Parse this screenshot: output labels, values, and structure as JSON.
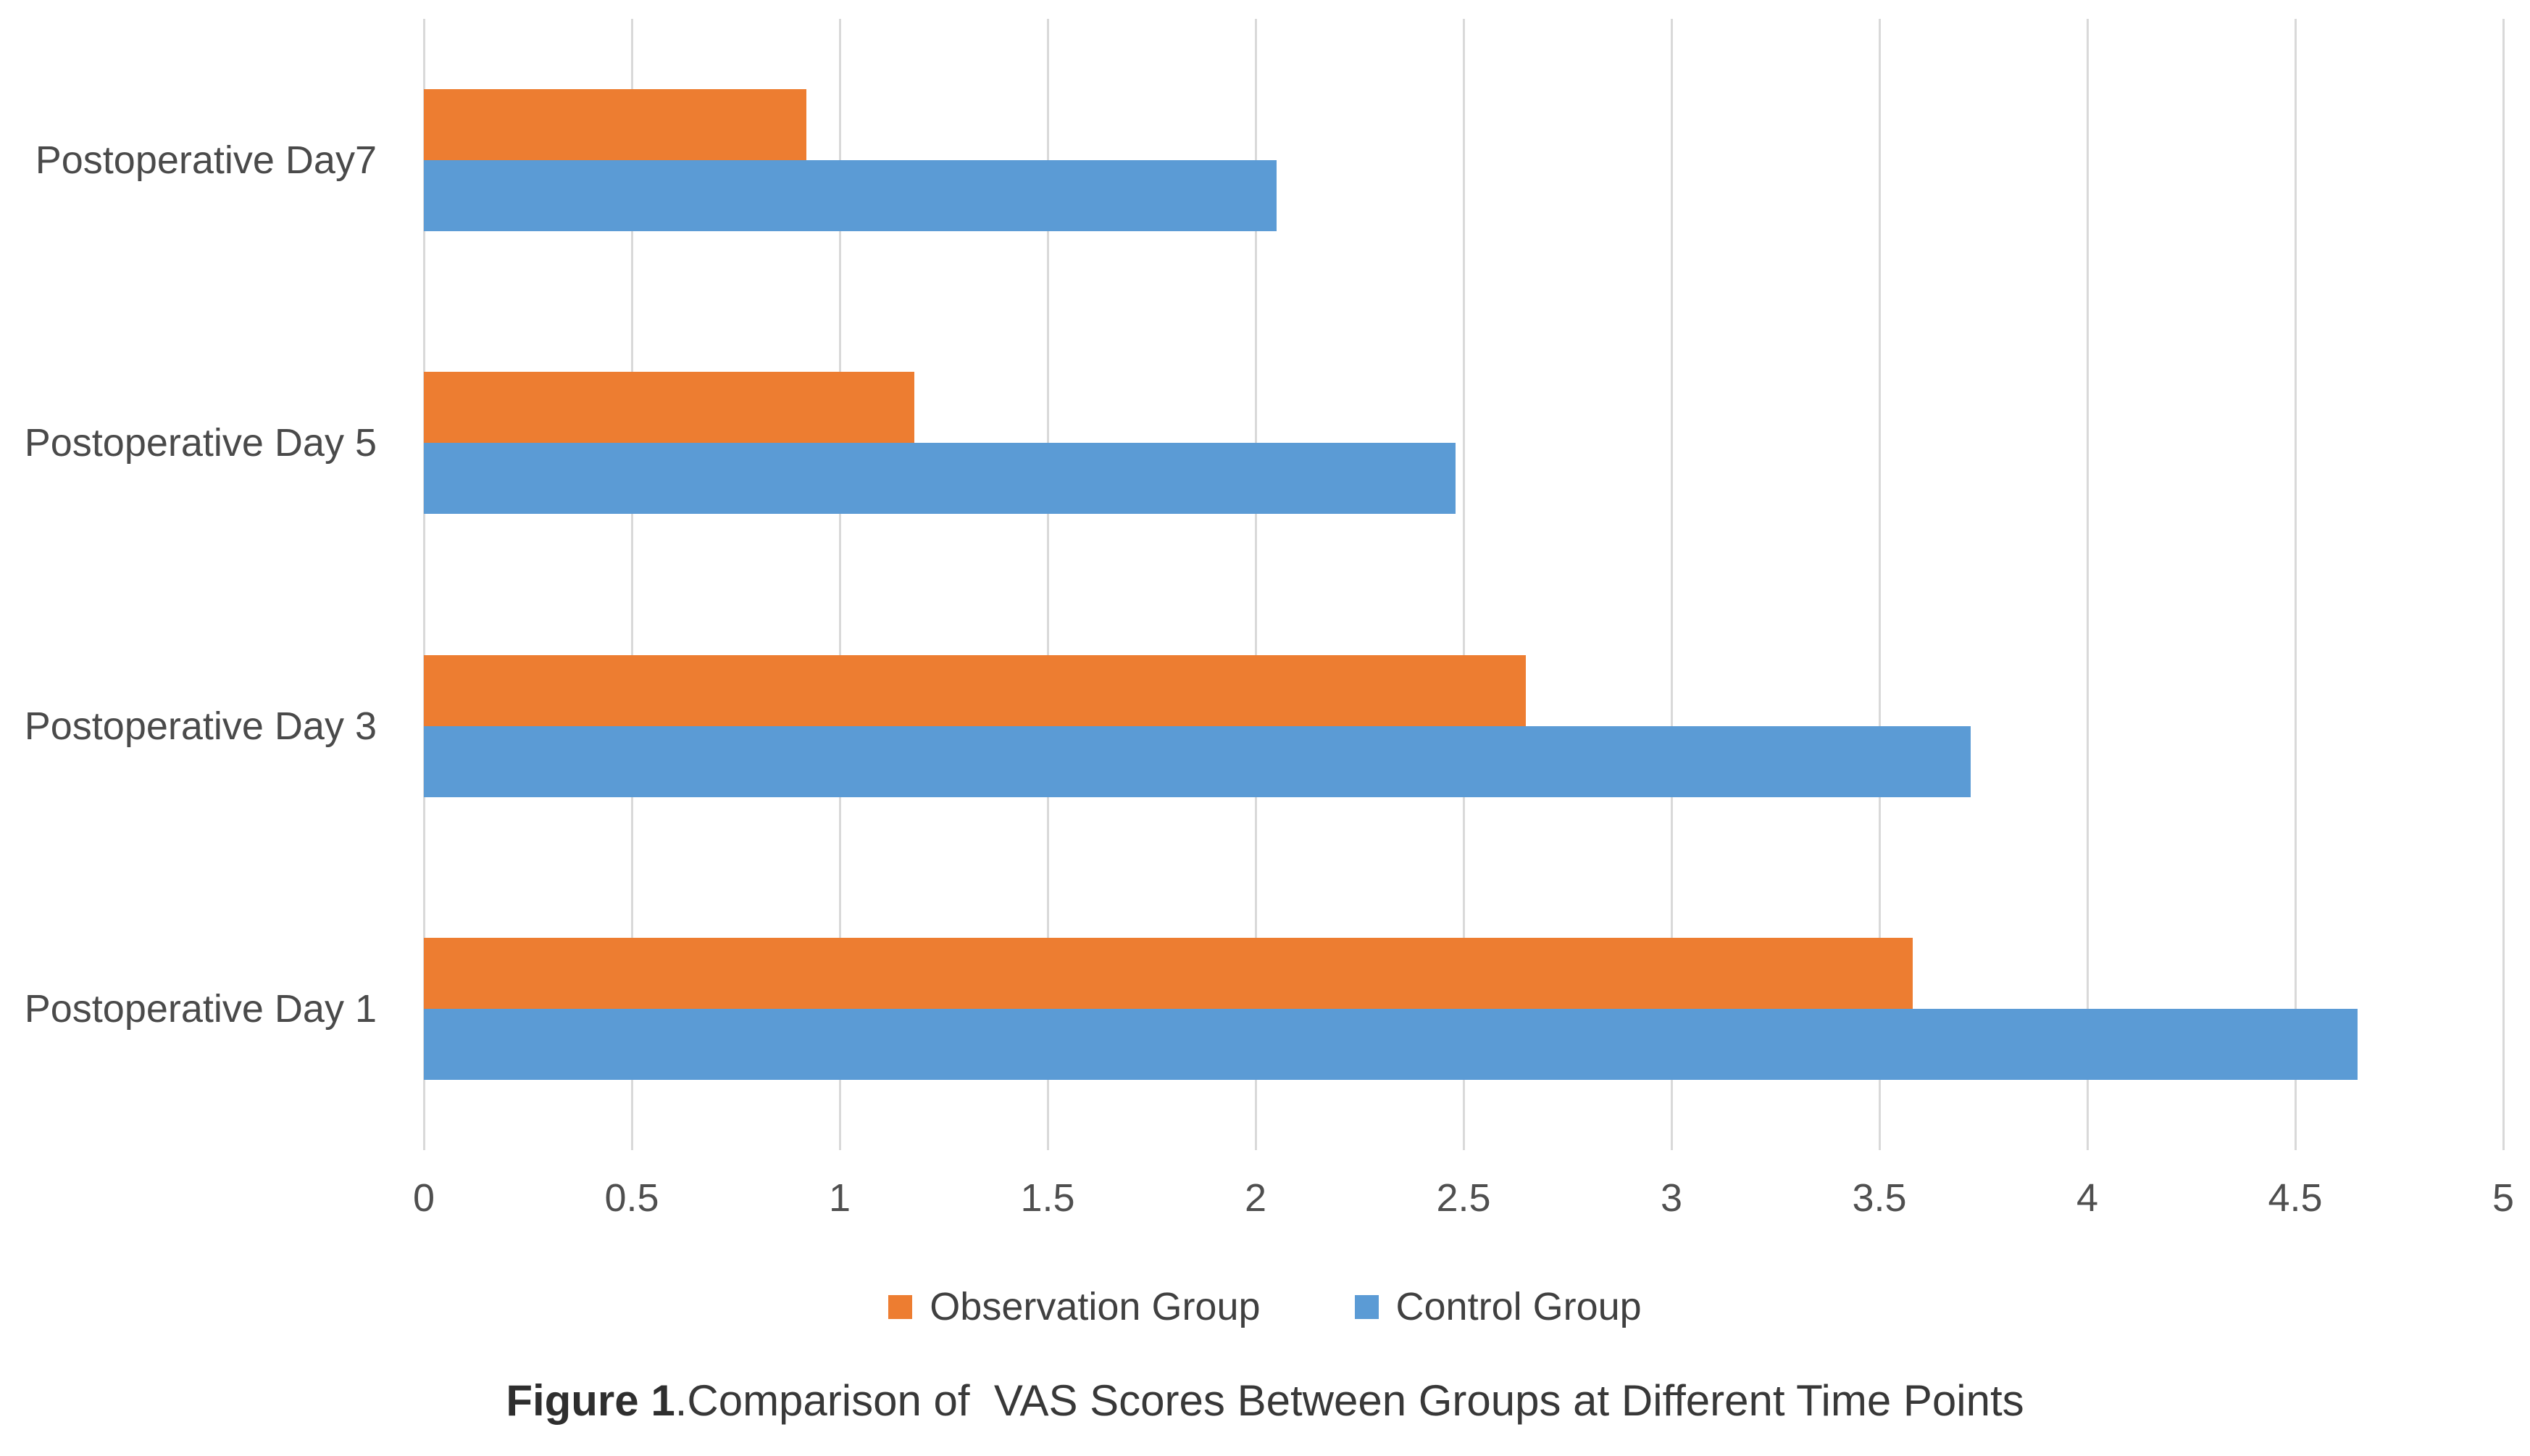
{
  "chart_data": {
    "type": "bar",
    "orientation": "horizontal",
    "title": "",
    "xlabel": "",
    "ylabel": "",
    "xlim": [
      0,
      5
    ],
    "grid": true,
    "legend_position": "bottom",
    "categories": [
      "Postoperative Day7",
      "Postoperative Day 5",
      "Postoperative Day 3",
      "Postoperative Day 1"
    ],
    "series": [
      {
        "name": "Observation Group",
        "color": "#ED7D31",
        "values": [
          0.92,
          1.18,
          2.65,
          3.58
        ]
      },
      {
        "name": "Control Group",
        "color": "#5B9BD5",
        "values": [
          2.05,
          2.48,
          3.72,
          4.65
        ]
      }
    ],
    "x_ticks": [
      "0",
      "0.5",
      "1",
      "1.5",
      "2",
      "2.5",
      "3",
      "3.5",
      "4",
      "4.5",
      "5"
    ]
  },
  "caption": {
    "figure_label": "Figure 1",
    "text": ".Comparison of  VAS Scores Between Groups at Different Time Points"
  },
  "colors": {
    "observation": "#ED7D31",
    "control": "#5B9BD5",
    "gridline": "#D9D9D9",
    "axis_text": "#4F4F4F",
    "background": "#FFFFFF"
  }
}
